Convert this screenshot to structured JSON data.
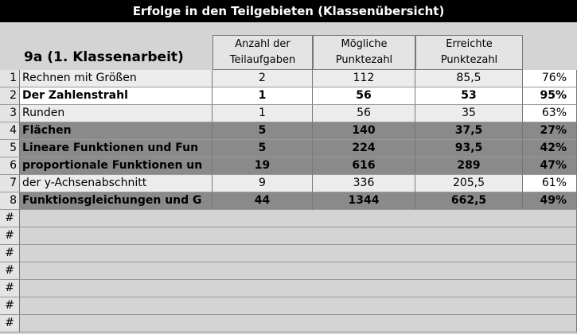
{
  "title": "Erfolge in den Teilgebieten (Klassenübersicht)",
  "sheet_label": "9a  (1. Klassenarbeit)",
  "columns": [
    "Anzahl der Teilaufgaben",
    "Mögliche Punktezahl",
    "Erreichte Punktezahl"
  ],
  "rows": [
    {
      "index": "1",
      "name": "Rechnen mit Größen",
      "cells": [
        "2",
        "112",
        "85,5",
        "76%"
      ],
      "style": "plain"
    },
    {
      "index": "2",
      "name": "Der Zahlenstrahl",
      "cells": [
        "1",
        "56",
        "53",
        "95%"
      ],
      "style": "bold"
    },
    {
      "index": "3",
      "name": "Runden",
      "cells": [
        "1",
        "56",
        "35",
        "63%"
      ],
      "style": "plain"
    },
    {
      "index": "4",
      "name": "Flächen",
      "cells": [
        "5",
        "140",
        "37,5",
        "27%"
      ],
      "style": "shaded"
    },
    {
      "index": "5",
      "name": "Lineare Funktionen und Fun",
      "cells": [
        "5",
        "224",
        "93,5",
        "42%"
      ],
      "style": "shaded"
    },
    {
      "index": "6",
      "name": "proportionale Funktionen un",
      "cells": [
        "19",
        "616",
        "289",
        "47%"
      ],
      "style": "shaded"
    },
    {
      "index": "7",
      "name": "der y-Achsenabschnitt",
      "cells": [
        "9",
        "336",
        "205,5",
        "61%"
      ],
      "style": "plain"
    },
    {
      "index": "8",
      "name": "Funktionsgleichungen und G",
      "cells": [
        "44",
        "1344",
        "662,5",
        "49%"
      ],
      "style": "shaded"
    }
  ],
  "empty_rows": [
    "#",
    "#",
    "#",
    "#",
    "#",
    "#",
    "#"
  ]
}
